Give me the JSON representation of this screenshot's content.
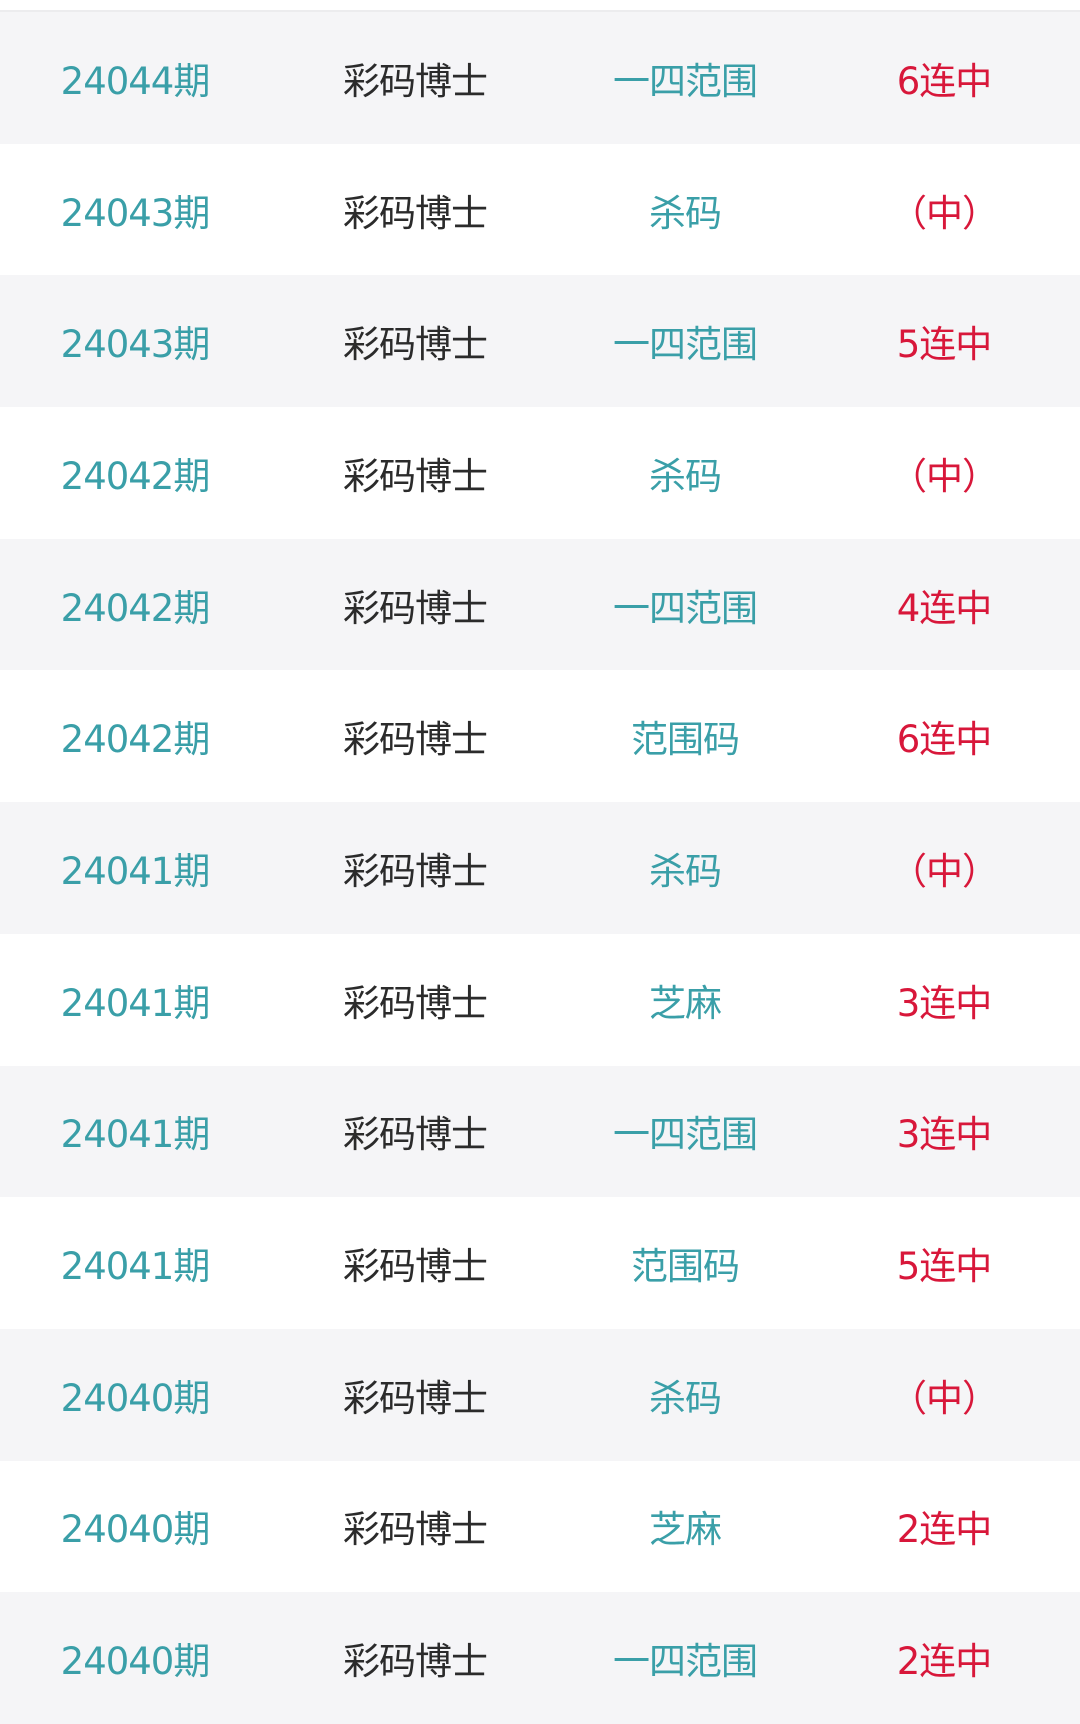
{
  "colors": {
    "issue": "#3a9fa8",
    "source": "#2b2b2b",
    "type": "#3a9fa8",
    "result": "#d8173a",
    "row_alt_bg": "#f5f5f7"
  },
  "rows": [
    {
      "issue": "24044期",
      "source": "彩码博士",
      "type": "一四范围",
      "result": "6连中"
    },
    {
      "issue": "24043期",
      "source": "彩码博士",
      "type": "杀码",
      "result": "（中）"
    },
    {
      "issue": "24043期",
      "source": "彩码博士",
      "type": "一四范围",
      "result": "5连中"
    },
    {
      "issue": "24042期",
      "source": "彩码博士",
      "type": "杀码",
      "result": "（中）"
    },
    {
      "issue": "24042期",
      "source": "彩码博士",
      "type": "一四范围",
      "result": "4连中"
    },
    {
      "issue": "24042期",
      "source": "彩码博士",
      "type": "范围码",
      "result": "6连中"
    },
    {
      "issue": "24041期",
      "source": "彩码博士",
      "type": "杀码",
      "result": "（中）"
    },
    {
      "issue": "24041期",
      "source": "彩码博士",
      "type": "芝麻",
      "result": "3连中"
    },
    {
      "issue": "24041期",
      "source": "彩码博士",
      "type": "一四范围",
      "result": "3连中"
    },
    {
      "issue": "24041期",
      "source": "彩码博士",
      "type": "范围码",
      "result": "5连中"
    },
    {
      "issue": "24040期",
      "source": "彩码博士",
      "type": "杀码",
      "result": "（中）"
    },
    {
      "issue": "24040期",
      "source": "彩码博士",
      "type": "芝麻",
      "result": "2连中"
    },
    {
      "issue": "24040期",
      "source": "彩码博士",
      "type": "一四范围",
      "result": "2连中"
    }
  ]
}
